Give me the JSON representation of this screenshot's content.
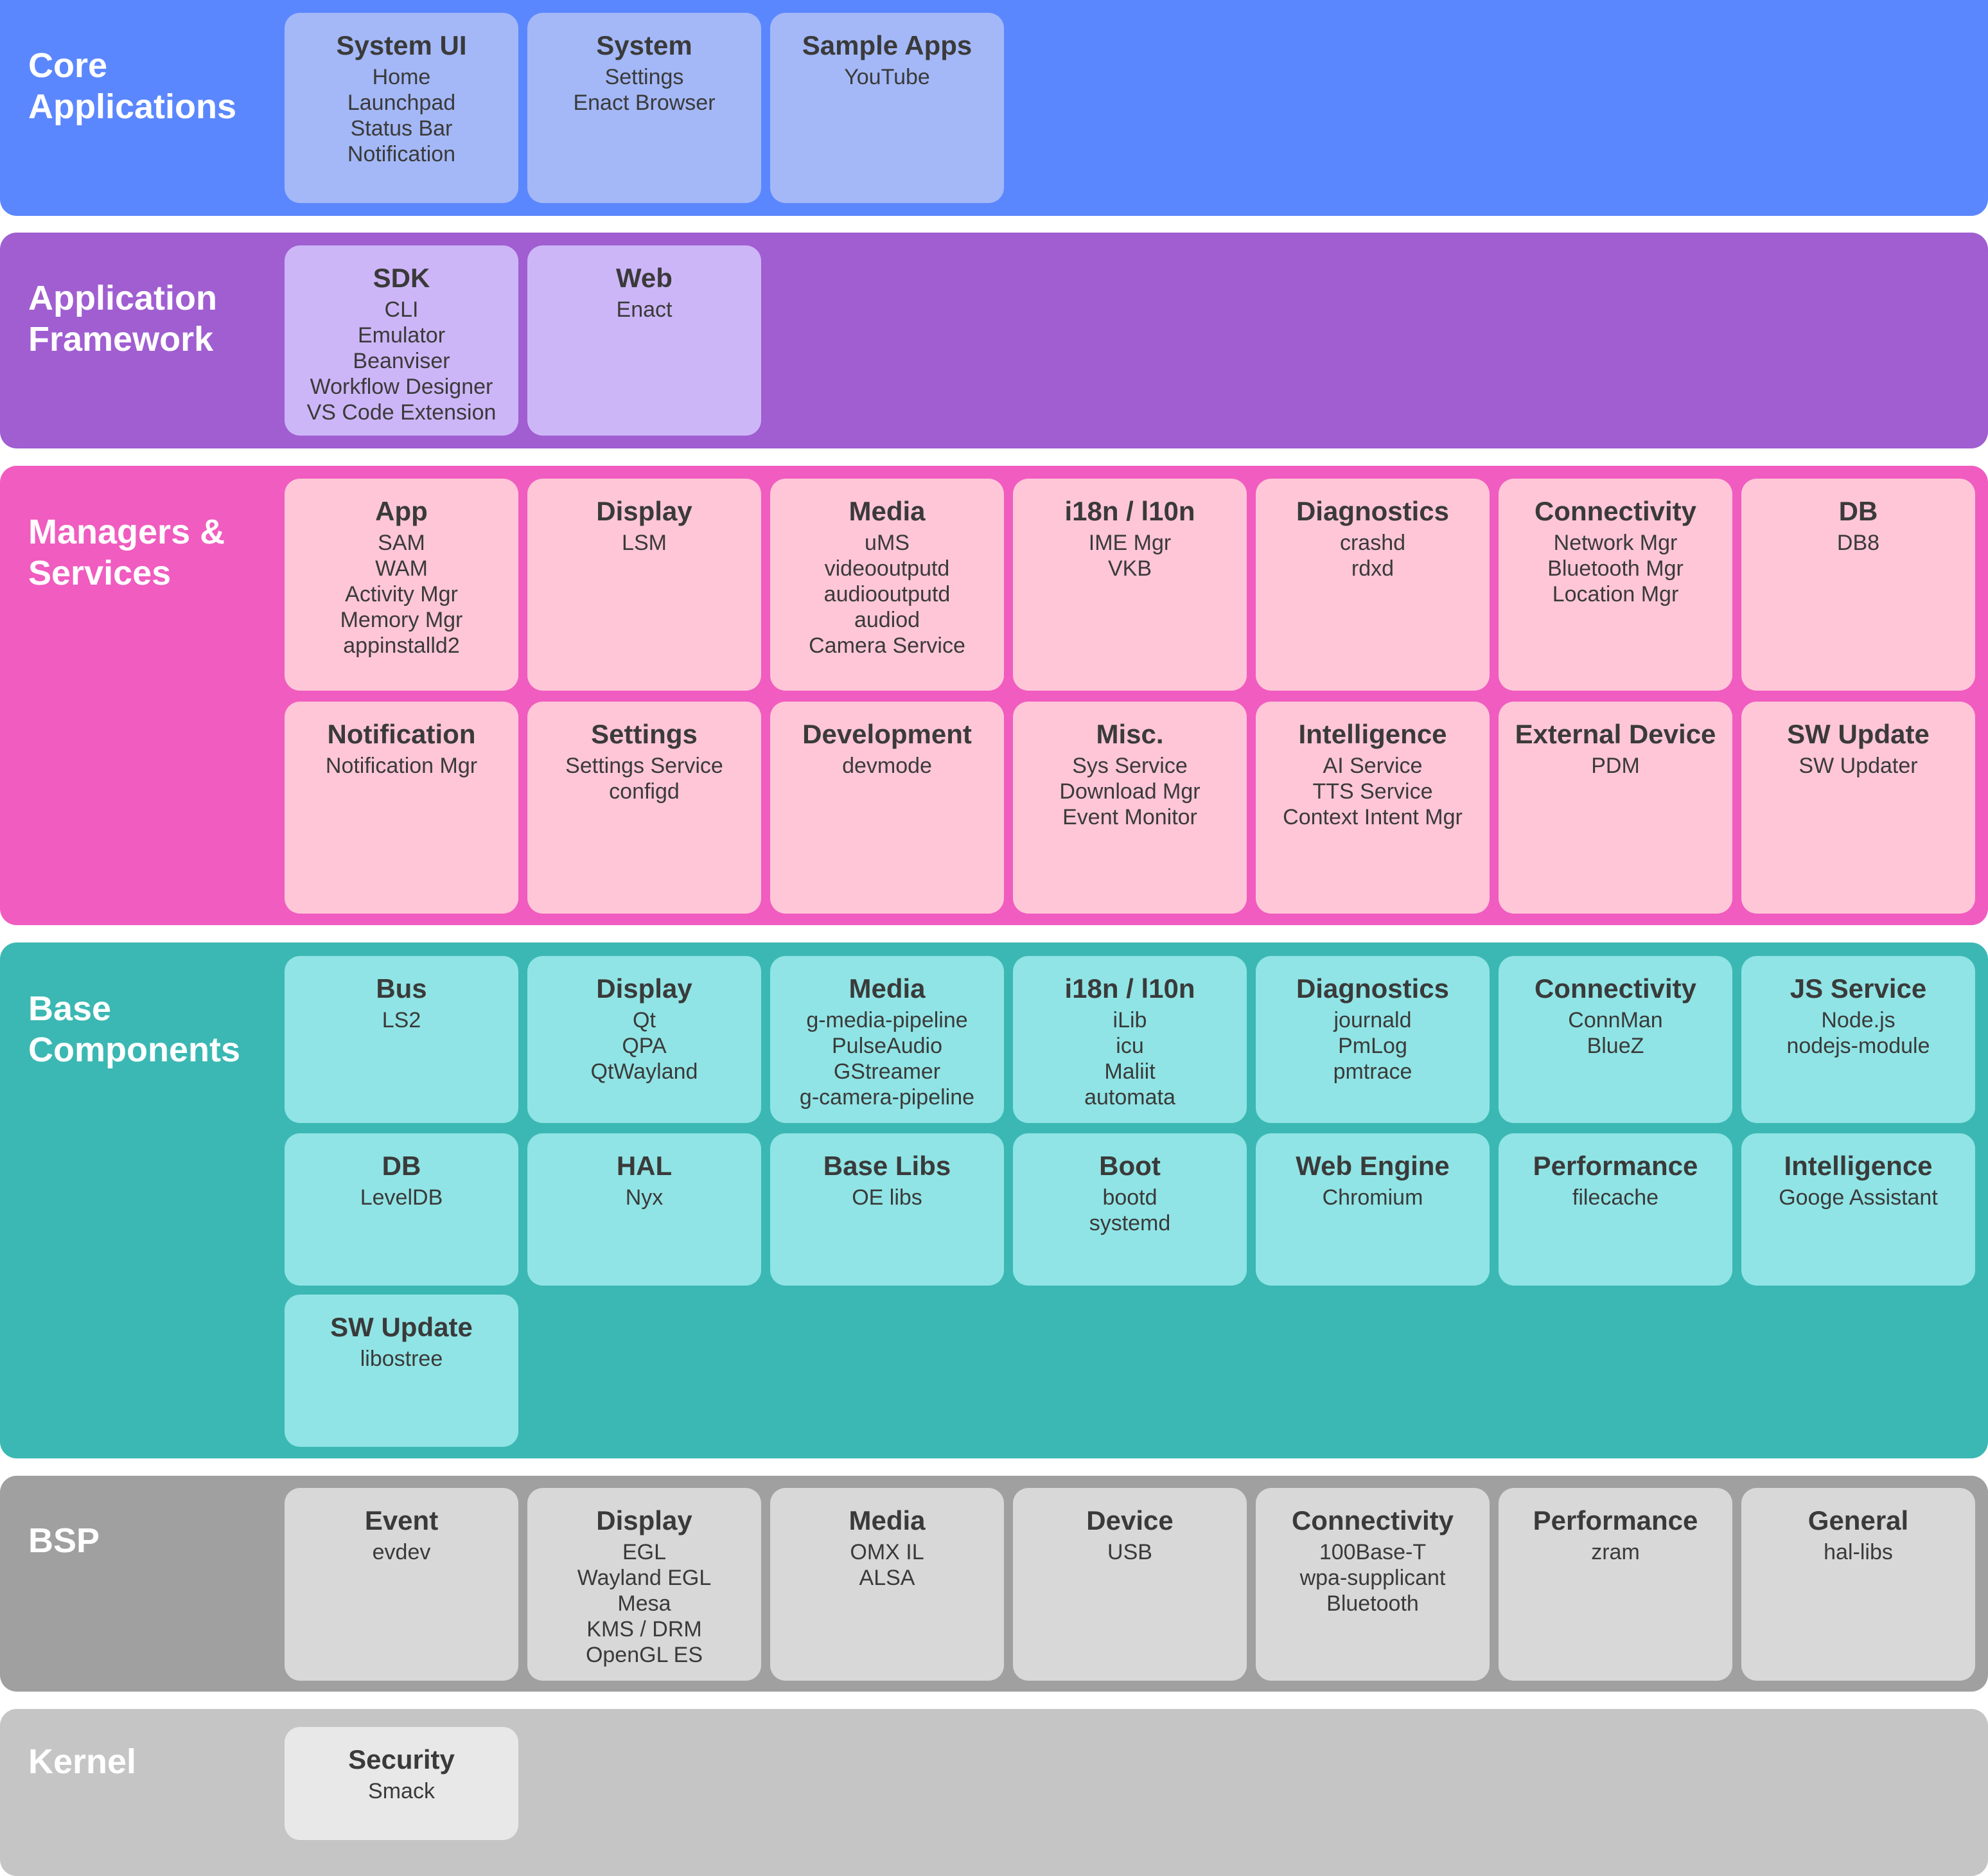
{
  "layers": [
    {
      "title": "Core\nApplications",
      "color": "#5b87fe",
      "box_color": "#a4b8f7",
      "boxes": [
        {
          "title": "System UI",
          "items": [
            "Home",
            "Launchpad",
            "Status Bar",
            "Notification"
          ]
        },
        {
          "title": "System",
          "items": [
            "Settings",
            "Enact Browser"
          ]
        },
        {
          "title": "Sample Apps",
          "items": [
            "YouTube"
          ]
        }
      ]
    },
    {
      "title": "Application\nFramework",
      "color": "#a05ed1",
      "box_color": "#cdb6f7",
      "boxes": [
        {
          "title": "SDK",
          "items": [
            "CLI",
            "Emulator",
            "Beanviser",
            "Workflow Designer",
            "VS Code Extension"
          ]
        },
        {
          "title": "Web",
          "items": [
            "Enact"
          ]
        }
      ]
    },
    {
      "title": "Managers &\nServices",
      "color": "#f05cbf",
      "box_color": "#ffc6d8",
      "boxes": [
        {
          "title": "App",
          "items": [
            "SAM",
            "WAM",
            "Activity Mgr",
            "Memory Mgr",
            "appinstalld2"
          ]
        },
        {
          "title": "Display",
          "items": [
            "LSM"
          ]
        },
        {
          "title": "Media",
          "items": [
            "uMS",
            "videooutputd",
            "audiooutputd",
            "audiod",
            "Camera Service"
          ]
        },
        {
          "title": "i18n / l10n",
          "items": [
            "IME Mgr",
            "VKB"
          ]
        },
        {
          "title": "Diagnostics",
          "items": [
            "crashd",
            "rdxd"
          ]
        },
        {
          "title": "Connectivity",
          "items": [
            "Network Mgr",
            "Bluetooth Mgr",
            "Location Mgr"
          ]
        },
        {
          "title": "DB",
          "items": [
            "DB8"
          ]
        },
        {
          "title": "Notification",
          "items": [
            "Notification Mgr"
          ]
        },
        {
          "title": "Settings",
          "items": [
            "Settings Service",
            "configd"
          ]
        },
        {
          "title": "Development",
          "items": [
            "devmode"
          ]
        },
        {
          "title": "Misc.",
          "items": [
            "Sys Service",
            "Download Mgr",
            "Event Monitor"
          ]
        },
        {
          "title": "Intelligence",
          "items": [
            "AI Service",
            "TTS Service",
            "Context Intent Mgr"
          ]
        },
        {
          "title": "External Device",
          "items": [
            "PDM"
          ]
        },
        {
          "title": "SW Update",
          "items": [
            "SW Updater"
          ]
        }
      ]
    },
    {
      "title": "Base\nComponents",
      "color": "#3bb8b3",
      "box_color": "#90e4e5",
      "boxes": [
        {
          "title": "Bus",
          "items": [
            "LS2"
          ]
        },
        {
          "title": "Display",
          "items": [
            "Qt",
            "QPA",
            "QtWayland"
          ]
        },
        {
          "title": "Media",
          "items": [
            "g-media-pipeline",
            "PulseAudio",
            "GStreamer",
            "g-camera-pipeline"
          ]
        },
        {
          "title": "i18n / l10n",
          "items": [
            "iLib",
            "icu",
            "Maliit",
            "automata"
          ]
        },
        {
          "title": "Diagnostics",
          "items": [
            "journald",
            "PmLog",
            "pmtrace"
          ]
        },
        {
          "title": "Connectivity",
          "items": [
            "ConnMan",
            "BlueZ"
          ]
        },
        {
          "title": "JS Service",
          "items": [
            "Node.js",
            "nodejs-module"
          ]
        },
        {
          "title": "DB",
          "items": [
            "LevelDB"
          ]
        },
        {
          "title": "HAL",
          "items": [
            "Nyx"
          ]
        },
        {
          "title": "Base Libs",
          "items": [
            "OE libs"
          ]
        },
        {
          "title": "Boot",
          "items": [
            "bootd",
            "systemd"
          ]
        },
        {
          "title": "Web Engine",
          "items": [
            "Chromium"
          ]
        },
        {
          "title": "Performance",
          "items": [
            "filecache"
          ]
        },
        {
          "title": "Intelligence",
          "items": [
            "Googe Assistant"
          ]
        },
        {
          "title": "SW Update",
          "items": [
            "libostree"
          ]
        }
      ]
    },
    {
      "title": "BSP",
      "color": "#a0a0a0",
      "box_color": "#d8d8d8",
      "boxes": [
        {
          "title": "Event",
          "items": [
            "evdev"
          ]
        },
        {
          "title": "Display",
          "items": [
            "EGL",
            "Wayland EGL",
            "Mesa",
            "KMS / DRM",
            "OpenGL ES"
          ]
        },
        {
          "title": "Media",
          "items": [
            "OMX IL",
            "ALSA"
          ]
        },
        {
          "title": "Device",
          "items": [
            "USB"
          ]
        },
        {
          "title": "Connectivity",
          "items": [
            "100Base-T",
            "wpa-supplicant",
            "Bluetooth"
          ]
        },
        {
          "title": "Performance",
          "items": [
            "zram"
          ]
        },
        {
          "title": "General",
          "items": [
            "hal-libs"
          ]
        }
      ]
    },
    {
      "title": "Kernel",
      "color": "#c5c5c5",
      "box_color": "#e8e8e8",
      "boxes": [
        {
          "title": "Security",
          "items": [
            "Smack"
          ]
        }
      ]
    }
  ]
}
